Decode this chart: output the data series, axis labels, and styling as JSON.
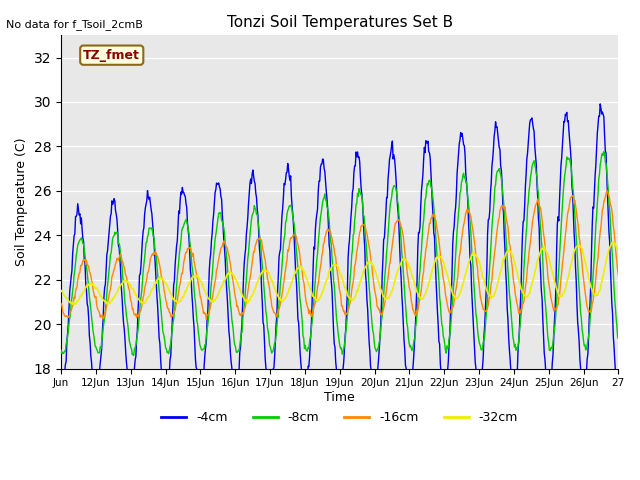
{
  "title": "Tonzi Soil Temperatures Set B",
  "xlabel": "Time",
  "ylabel": "Soil Temperature (C)",
  "no_data_text": "No data for f_Tsoil_2cmB",
  "tz_fmet_label": "TZ_fmet",
  "ylim": [
    18,
    33
  ],
  "yticks": [
    18,
    20,
    22,
    24,
    26,
    28,
    30,
    32
  ],
  "xtick_labels": [
    "Jun",
    "12Jun",
    "13Jun",
    "14Jun",
    "15Jun",
    "16Jun",
    "17Jun",
    "18Jun",
    "19Jun",
    "20Jun",
    "21Jun",
    "22Jun",
    "23Jun",
    "24Jun",
    "25Jun",
    "26Jun",
    "27"
  ],
  "bg_color": "#e8e8e8",
  "line_colors": {
    "4cm": "#0000ee",
    "8cm": "#00cc00",
    "16cm": "#ff8800",
    "32cm": "#eeee00"
  },
  "legend_labels": [
    "-4cm",
    "-8cm",
    "-16cm",
    "-32cm"
  ],
  "legend_colors": [
    "#0000ee",
    "#00cc00",
    "#ff8800",
    "#eeee00"
  ],
  "figsize": [
    6.4,
    4.8
  ],
  "dpi": 100
}
